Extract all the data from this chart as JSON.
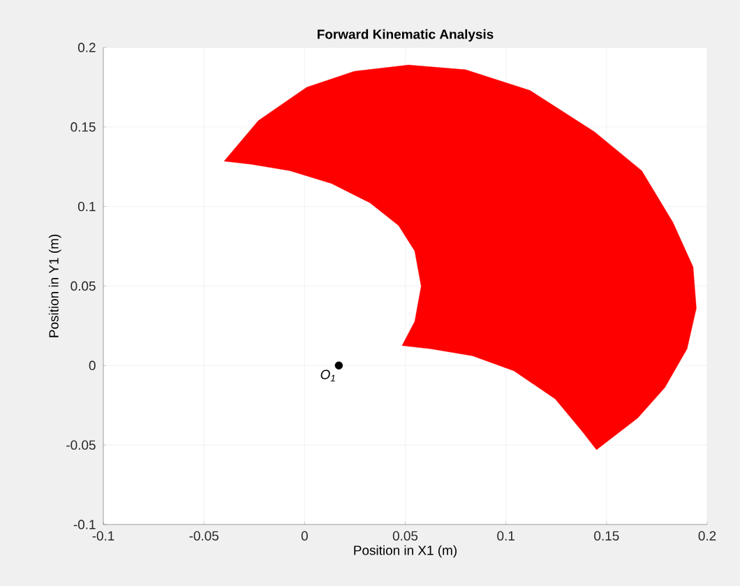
{
  "chart_data": {
    "type": "area",
    "title": "Forward Kinematic Analysis",
    "xlabel": "Position in X1 (m)",
    "ylabel": "Position in Y1 (m)",
    "series": [
      {
        "color": "#ff0000",
        "x": [
          -0.04,
          -0.023,
          0.001,
          0.0245,
          0.0516,
          0.08,
          0.112,
          0.144,
          0.1675,
          0.183,
          0.193,
          0.1946,
          0.19,
          0.179,
          0.1655,
          0.145,
          0.138,
          0.1245,
          0.104,
          0.0834,
          0.0628,
          0.0484,
          0.0547,
          0.0579,
          0.0547,
          0.0467,
          0.0325,
          0.0134,
          -0.0073,
          -0.0264
        ],
        "values": [
          0.1285,
          0.154,
          0.175,
          0.185,
          0.189,
          0.186,
          0.173,
          0.147,
          0.1225,
          0.09,
          0.062,
          0.036,
          0.0105,
          -0.0138,
          -0.033,
          -0.053,
          -0.0416,
          -0.021,
          -0.0034,
          0.0061,
          0.0105,
          0.0125,
          0.0277,
          0.0499,
          0.072,
          0.088,
          0.1023,
          0.1144,
          0.1225,
          0.1265
        ]
      },
      {
        "type": "scatter",
        "color": "#000000",
        "x": [
          0.017
        ],
        "values": [
          0
        ]
      }
    ],
    "xlim": [
      -0.1,
      0.2
    ],
    "ylim": [
      -0.1,
      0.2
    ],
    "xticks": [
      -0.1,
      -0.05,
      0,
      0.05,
      0.1,
      0.15,
      0.2
    ],
    "yticks": [
      -0.1,
      -0.05,
      0,
      0.05,
      0.1,
      0.15,
      0.2
    ],
    "grid": true,
    "annotations": [
      {
        "text": "O$_{1}$",
        "x": 0.017,
        "y": 0
      }
    ]
  }
}
